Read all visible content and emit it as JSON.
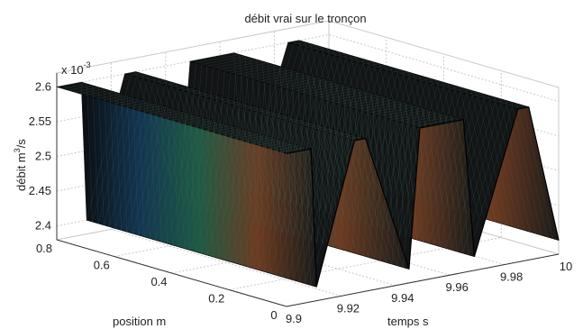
{
  "chart_data": {
    "type": "surface",
    "title": "débit vrai sur le tronçon",
    "xlabel": "temps s",
    "ylabel": "position m",
    "zlabel": "débit m^3/s",
    "zlabel_parts": {
      "base": "débit m",
      "sup": "3",
      "tail": "/s"
    },
    "z_multiplier": {
      "base": "x 10",
      "exp": "-3"
    },
    "x_ticks": [
      "9.9",
      "9.92",
      "9.94",
      "9.96",
      "9.98",
      "10"
    ],
    "y_ticks": [
      "0",
      "0.2",
      "0.4",
      "0.6",
      "0.8"
    ],
    "z_ticks": [
      "2.4",
      "2.45",
      "2.5",
      "2.55",
      "2.6"
    ],
    "xlim": [
      9.9,
      10.0
    ],
    "ylim": [
      0,
      0.8
    ],
    "zlim": [
      2.38,
      2.62
    ],
    "z_scale": 0.001,
    "grid": true,
    "colormap": [
      "#0b0d12",
      "#123552",
      "#1e5a44",
      "#6e3a20",
      "#1a1a1a"
    ],
    "surface": {
      "description_of_profile": "square-wave in time, constant along position",
      "t": [
        9.9,
        9.909,
        9.911,
        9.925,
        9.929,
        9.945,
        9.949,
        9.965,
        9.969,
        9.985,
        9.989,
        10.0
      ],
      "q": [
        2.6,
        2.6,
        2.4,
        2.6,
        2.6,
        2.4,
        2.6,
        2.6,
        2.4,
        2.6,
        2.6,
        2.4
      ]
    }
  }
}
